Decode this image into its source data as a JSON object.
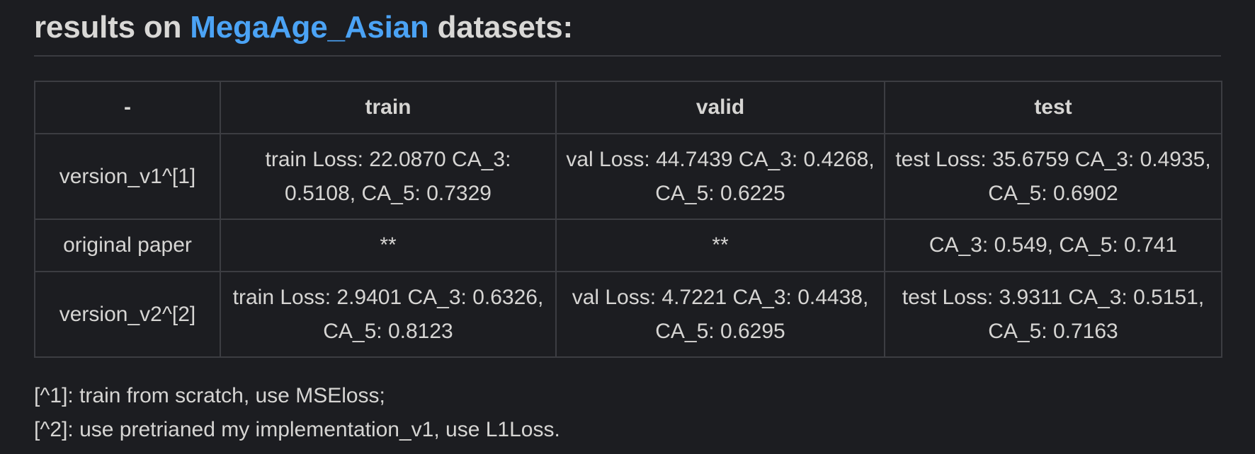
{
  "heading": {
    "prefix": "results on ",
    "link": "MegaAge_Asian",
    "suffix": " datasets:"
  },
  "table": {
    "headers": [
      "-",
      "train",
      "valid",
      "test"
    ],
    "rows": [
      {
        "label": "version_v1^[1]",
        "train": "train Loss: 22.0870 CA_3: 0.5108, CA_5: 0.7329",
        "valid": "val Loss: 44.7439 CA_3: 0.4268, CA_5: 0.6225",
        "test": "test Loss: 35.6759 CA_3: 0.4935, CA_5: 0.6902"
      },
      {
        "label": "original paper",
        "train": "**",
        "valid": "**",
        "test": "CA_3: 0.549, CA_5: 0.741"
      },
      {
        "label": "version_v2^[2]",
        "train": "train Loss: 2.9401 CA_3: 0.6326, CA_5: 0.8123",
        "valid": "val Loss: 4.7221 CA_3: 0.4438, CA_5: 0.6295",
        "test": "test Loss: 3.9311 CA_3: 0.5151, CA_5: 0.7163"
      }
    ]
  },
  "notes": [
    "[^1]: train from scratch, use MSEloss;",
    "[^2]: use pretrianed my implementation_v1, use L1Loss."
  ],
  "colors": {
    "background": "#1c1d21",
    "text": "#d6d5d3",
    "link": "#4ba3f5",
    "border": "#3c3d42"
  }
}
